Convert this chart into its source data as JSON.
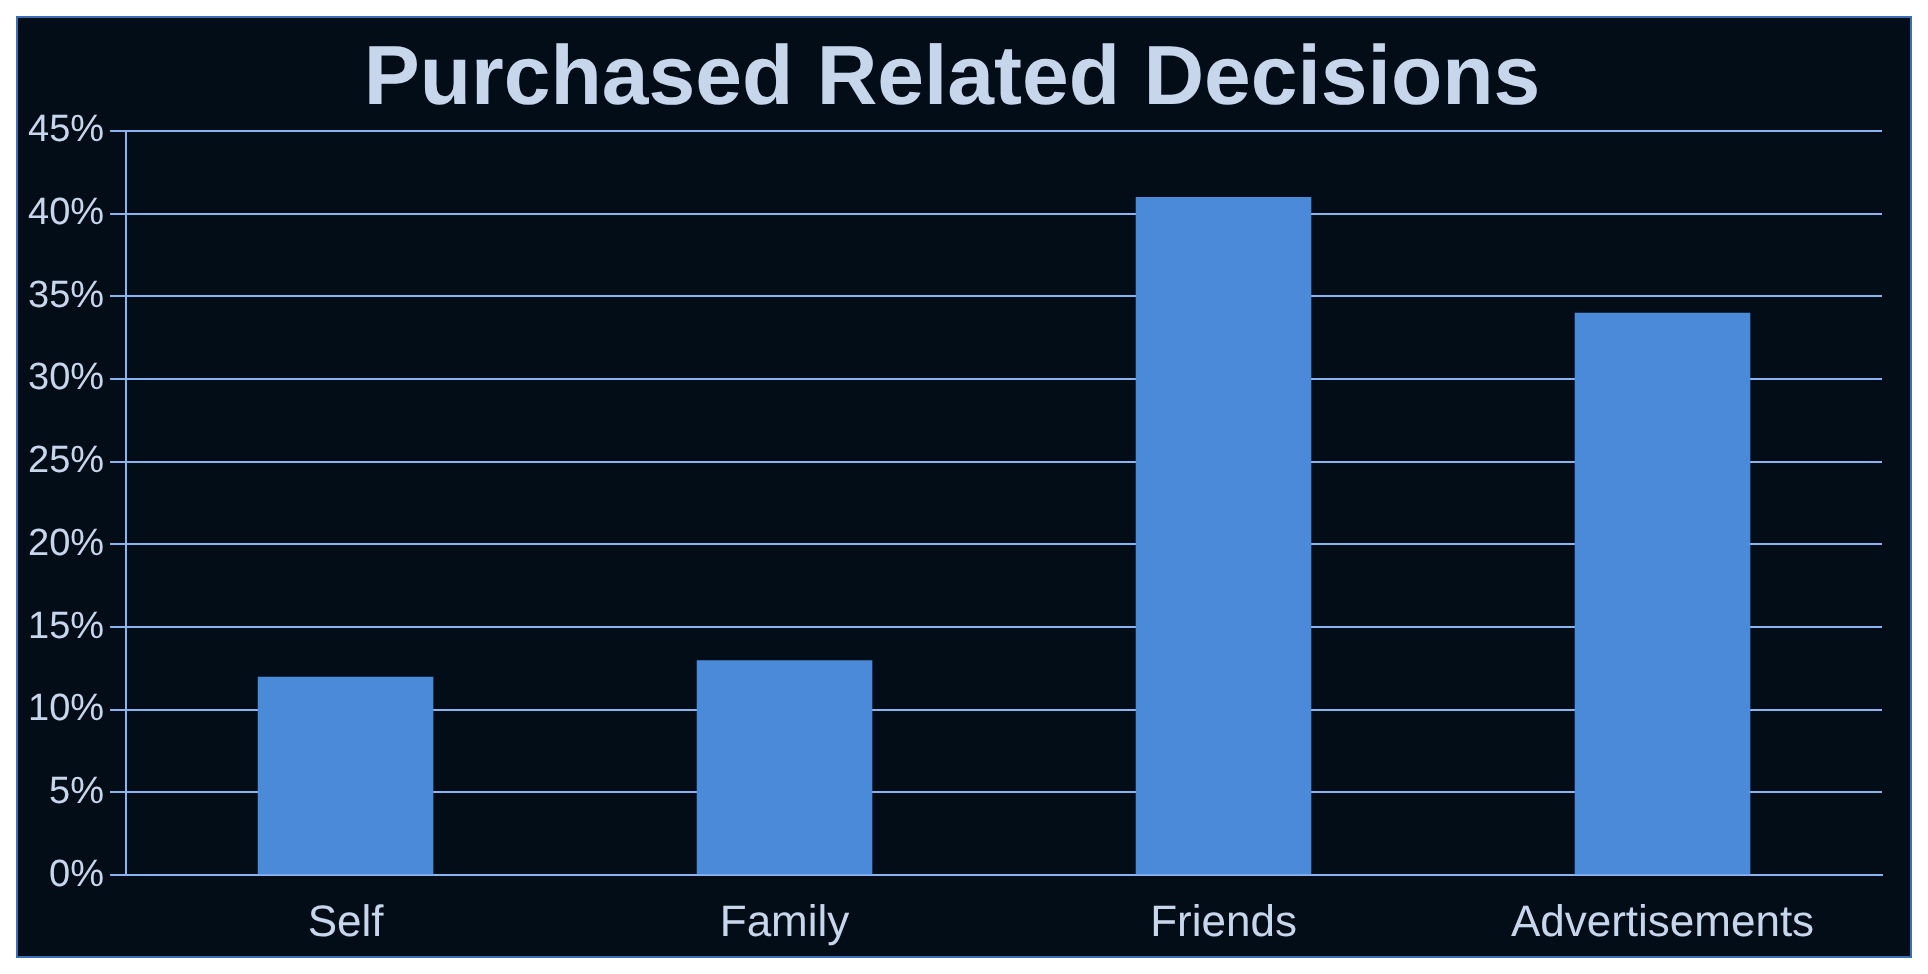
{
  "chart_data": {
    "type": "bar",
    "title": "Purchased Related Decisions",
    "categories": [
      "Self",
      "Family",
      "Friends",
      "Advertisements"
    ],
    "values": [
      12,
      13,
      41,
      34
    ],
    "color": "#4a8ad8",
    "ylim": [
      0,
      45
    ],
    "yticks": [
      {
        "value": 0,
        "label": "0%"
      },
      {
        "value": 5,
        "label": "5%"
      },
      {
        "value": 10,
        "label": "10%"
      },
      {
        "value": 15,
        "label": "15%"
      },
      {
        "value": 20,
        "label": "20%"
      },
      {
        "value": 25,
        "label": "25%"
      },
      {
        "value": 30,
        "label": "30%"
      },
      {
        "value": 35,
        "label": "35%"
      },
      {
        "value": 40,
        "label": "40%"
      },
      {
        "value": 45,
        "label": "45%"
      }
    ],
    "grid": "y",
    "legend": false
  }
}
